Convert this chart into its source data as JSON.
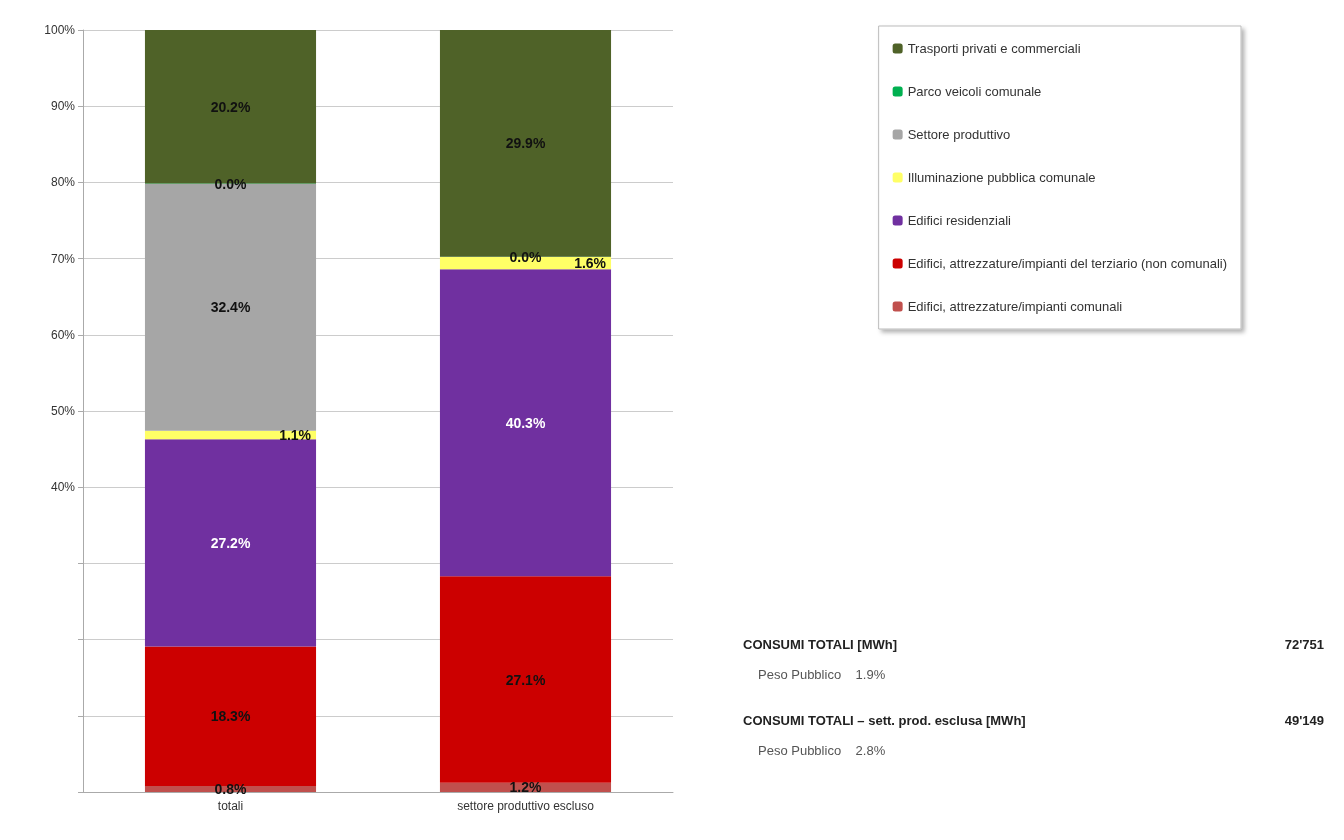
{
  "chart_data": {
    "type": "bar",
    "stacked": true,
    "categories": [
      "totali",
      "settore produttivo escluso"
    ],
    "series": [
      {
        "name": "Edifici, attrezzature/impianti comunali",
        "color": "#c0504d",
        "values": [
          0.8,
          1.2
        ],
        "value_labels": [
          "0.8%",
          "1.2%"
        ]
      },
      {
        "name": "Edifici, attrezzature/impianti del terziario (non comunali)",
        "color": "#cc0000",
        "values": [
          18.3,
          27.1
        ],
        "value_labels": [
          "18.3%",
          "27.1%"
        ]
      },
      {
        "name": "Edifici residenziali",
        "color": "#7030a0",
        "values": [
          27.2,
          40.3
        ],
        "value_labels": [
          "27.2%",
          "40.3%"
        ]
      },
      {
        "name": "Illuminazione pubblica comunale",
        "color": "#ffff66",
        "values": [
          1.1,
          1.6
        ],
        "value_labels": [
          "1.1%",
          "1.6%"
        ]
      },
      {
        "name": "Settore produttivo",
        "color": "#a6a6a6",
        "values": [
          32.4,
          0
        ],
        "value_labels": [
          "32.4%",
          null
        ]
      },
      {
        "name": "Parco veicoli comunale",
        "color": "#00b050",
        "values": [
          0.04,
          0.04
        ],
        "value_labels": [
          "0.0%",
          "0.0%"
        ]
      },
      {
        "name": "Trasporti privati e commerciali",
        "color": "#4f6228",
        "values": [
          20.2,
          29.9
        ],
        "value_labels": [
          "20.2%",
          "29.9%"
        ]
      }
    ],
    "ylim": [
      0,
      100
    ],
    "yticks": [
      {
        "value": 0,
        "label": null
      },
      {
        "value": 10,
        "label": null
      },
      {
        "value": 20,
        "label": null
      },
      {
        "value": 30,
        "label": null
      },
      {
        "value": 40,
        "label": "40%"
      },
      {
        "value": 50,
        "label": "50%"
      },
      {
        "value": 60,
        "label": "60%"
      },
      {
        "value": 70,
        "label": "70%"
      },
      {
        "value": 80,
        "label": "80%"
      },
      {
        "value": 90,
        "label": "90%"
      },
      {
        "value": 100,
        "label": "100%"
      }
    ],
    "grid": "y",
    "legend": "top right",
    "annotations": [
      "CONSUMI TOTALI [MWh]",
      "72'751",
      "Peso Pubblico    1.9%",
      "CONSUMI TOTALI – sett. prod. esclusa [MWh]",
      "49'149",
      "Peso Pubblico    2.8%"
    ]
  }
}
